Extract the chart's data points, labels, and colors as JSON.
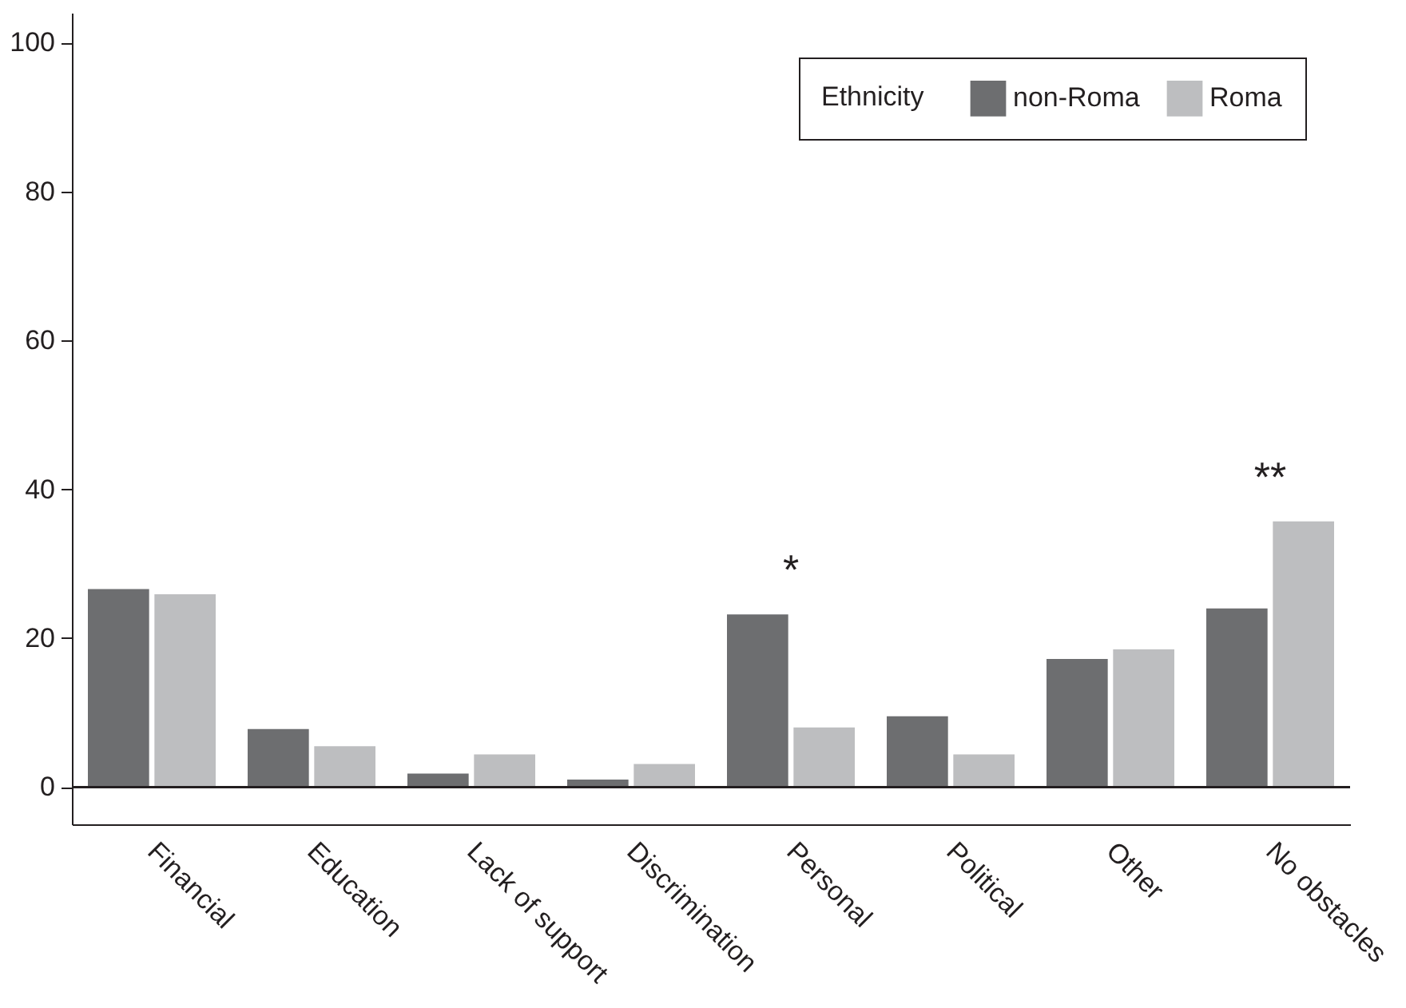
{
  "chart_data": {
    "type": "bar",
    "categories": [
      "Financial",
      "Education",
      "Lack of support",
      "Discrimination",
      "Personal",
      "Political",
      "Other",
      "No obstacles"
    ],
    "series": [
      {
        "name": "non-Roma",
        "color": "#6d6e70",
        "values": [
          26.6,
          7.8,
          1.8,
          1.0,
          23.2,
          9.5,
          17.2,
          24.0
        ]
      },
      {
        "name": "Roma",
        "color": "#bdbec0",
        "values": [
          25.9,
          5.5,
          4.4,
          3.1,
          8.0,
          4.4,
          18.5,
          35.7
        ]
      }
    ],
    "legend_title": "Ethnicity",
    "legend": "top right",
    "ylim": [
      -5,
      104
    ],
    "yticks": [
      0,
      20,
      40,
      60,
      80,
      100
    ],
    "ref_lines": [
      {
        "axis": "y",
        "value": 0
      }
    ],
    "annotations": [
      {
        "text": "*",
        "x": "Personal",
        "y": 23.2
      },
      {
        "text": "**",
        "x": "No obstacles",
        "y": 35.7
      }
    ]
  }
}
